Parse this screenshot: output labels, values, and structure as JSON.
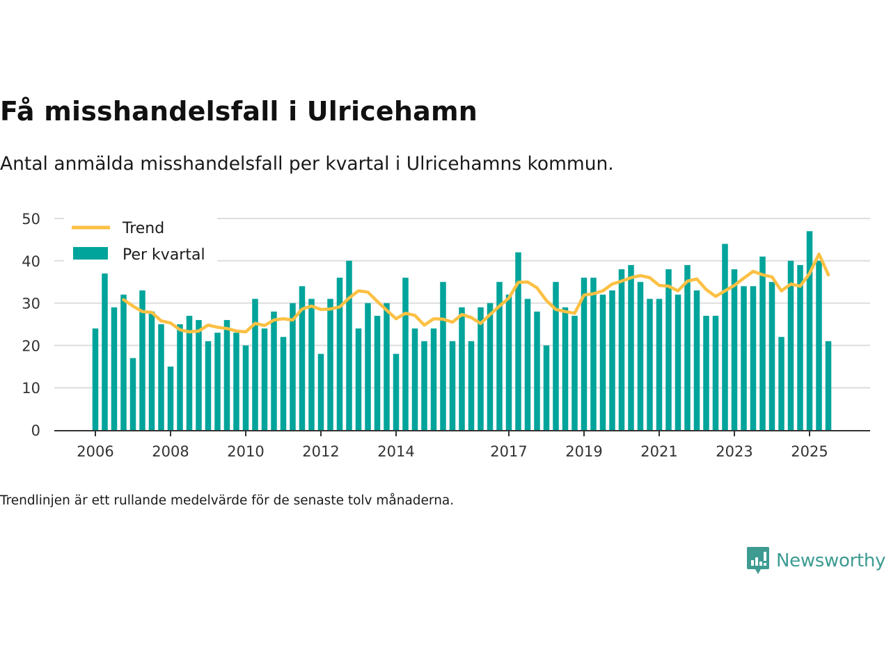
{
  "header": {
    "title": "Få misshandelsfall i Ulricehamn",
    "subtitle": "Antal anmälda misshandelsfall per kvartal i Ulricehamns kommun."
  },
  "footer": {
    "note": "Trendlinjen är ett rullande medelvärde för de senaste tolv månaderna.",
    "brand": "Newsworthy",
    "brand_icon": "bar-chart-speech-bubble-icon"
  },
  "colors": {
    "bars": "#00a49a",
    "trend": "#fcc043",
    "grid": "#dddddd",
    "axis": "#333333",
    "brand": "#3d9b92"
  },
  "chart_data": {
    "type": "bar",
    "title": "Få misshandelsfall i Ulricehamn",
    "subtitle": "Antal anmälda misshandelsfall per kvartal i Ulricehamns kommun.",
    "xlabel": "",
    "ylabel": "",
    "ylim": [
      0,
      50
    ],
    "yticks": [
      0,
      10,
      20,
      30,
      40,
      50
    ],
    "xticks": [
      "2006",
      "2008",
      "2010",
      "2012",
      "2014",
      "2017",
      "2019",
      "2021",
      "2023",
      "2025"
    ],
    "xtick_years": [
      2006,
      2008,
      2010,
      2012,
      2014,
      2017,
      2019,
      2021,
      2023,
      2025
    ],
    "grid": true,
    "legend_position": "top-left",
    "start": "2006 Q1",
    "categories": [
      "2006 Q1",
      "2006 Q2",
      "2006 Q3",
      "2006 Q4",
      "2007 Q1",
      "2007 Q2",
      "2007 Q3",
      "2007 Q4",
      "2008 Q1",
      "2008 Q2",
      "2008 Q3",
      "2008 Q4",
      "2009 Q1",
      "2009 Q2",
      "2009 Q3",
      "2009 Q4",
      "2010 Q1",
      "2010 Q2",
      "2010 Q3",
      "2010 Q4",
      "2011 Q1",
      "2011 Q2",
      "2011 Q3",
      "2011 Q4",
      "2012 Q1",
      "2012 Q2",
      "2012 Q3",
      "2012 Q4",
      "2013 Q1",
      "2013 Q2",
      "2013 Q3",
      "2013 Q4",
      "2014 Q1",
      "2014 Q2",
      "2014 Q3",
      "2014 Q4",
      "2015 Q1",
      "2015 Q2",
      "2015 Q3",
      "2015 Q4",
      "2016 Q1",
      "2016 Q2",
      "2016 Q3",
      "2016 Q4",
      "2017 Q1",
      "2017 Q2",
      "2017 Q3",
      "2017 Q4",
      "2018 Q1",
      "2018 Q2",
      "2018 Q3",
      "2018 Q4",
      "2019 Q1",
      "2019 Q2",
      "2019 Q3",
      "2019 Q4",
      "2020 Q1",
      "2020 Q2",
      "2020 Q3",
      "2020 Q4",
      "2021 Q1",
      "2021 Q2",
      "2021 Q3",
      "2021 Q4",
      "2022 Q1",
      "2022 Q2",
      "2022 Q3",
      "2022 Q4",
      "2023 Q1",
      "2023 Q2",
      "2023 Q3",
      "2023 Q4",
      "2024 Q1",
      "2024 Q2",
      "2024 Q3",
      "2024 Q4",
      "2025 Q1",
      "2025 Q2",
      "2025 Q3"
    ],
    "series": [
      {
        "name": "Per kvartal",
        "type": "bar",
        "values": [
          24,
          37,
          29,
          32,
          17,
          33,
          28,
          25,
          15,
          25,
          27,
          26,
          21,
          23,
          26,
          23,
          20,
          31,
          24,
          28,
          22,
          30,
          34,
          31,
          18,
          31,
          36,
          40,
          24,
          30,
          27,
          30,
          18,
          36,
          24,
          21,
          24,
          35,
          21,
          29,
          21,
          29,
          30,
          35,
          32,
          42,
          31,
          28,
          20,
          35,
          29,
          27,
          36,
          36,
          32,
          33,
          38,
          39,
          35,
          31,
          31,
          38,
          32,
          39,
          33,
          27,
          27,
          44,
          38,
          34,
          34,
          41,
          35,
          22,
          40,
          39,
          47,
          40,
          21
        ]
      },
      {
        "name": "Trend",
        "type": "line",
        "values": [
          null,
          null,
          null,
          30.8,
          29.3,
          28.0,
          27.8,
          25.8,
          25.3,
          23.7,
          23.2,
          23.4,
          24.8,
          24.3,
          24.0,
          23.4,
          23.2,
          25.2,
          24.7,
          26.0,
          26.3,
          26.0,
          28.6,
          29.3,
          28.5,
          28.6,
          29.1,
          31.2,
          32.9,
          32.6,
          30.4,
          28.3,
          26.3,
          27.6,
          27.1,
          24.8,
          26.3,
          26.2,
          25.5,
          27.3,
          26.6,
          25.2,
          27.3,
          29.3,
          31.2,
          34.9,
          35.0,
          33.6,
          30.6,
          28.5,
          28.0,
          27.6,
          31.9,
          32.2,
          32.9,
          34.5,
          35.2,
          36.0,
          36.5,
          36.0,
          34.2,
          34.0,
          32.9,
          35.2,
          35.7,
          33.2,
          31.6,
          32.9,
          34.2,
          35.9,
          37.5,
          36.7,
          36.2,
          32.9,
          34.5,
          34.0,
          37.0,
          41.6,
          36.7
        ]
      }
    ],
    "legend": [
      {
        "label": "Trend",
        "kind": "line"
      },
      {
        "label": "Per kvartal",
        "kind": "bar"
      }
    ]
  }
}
